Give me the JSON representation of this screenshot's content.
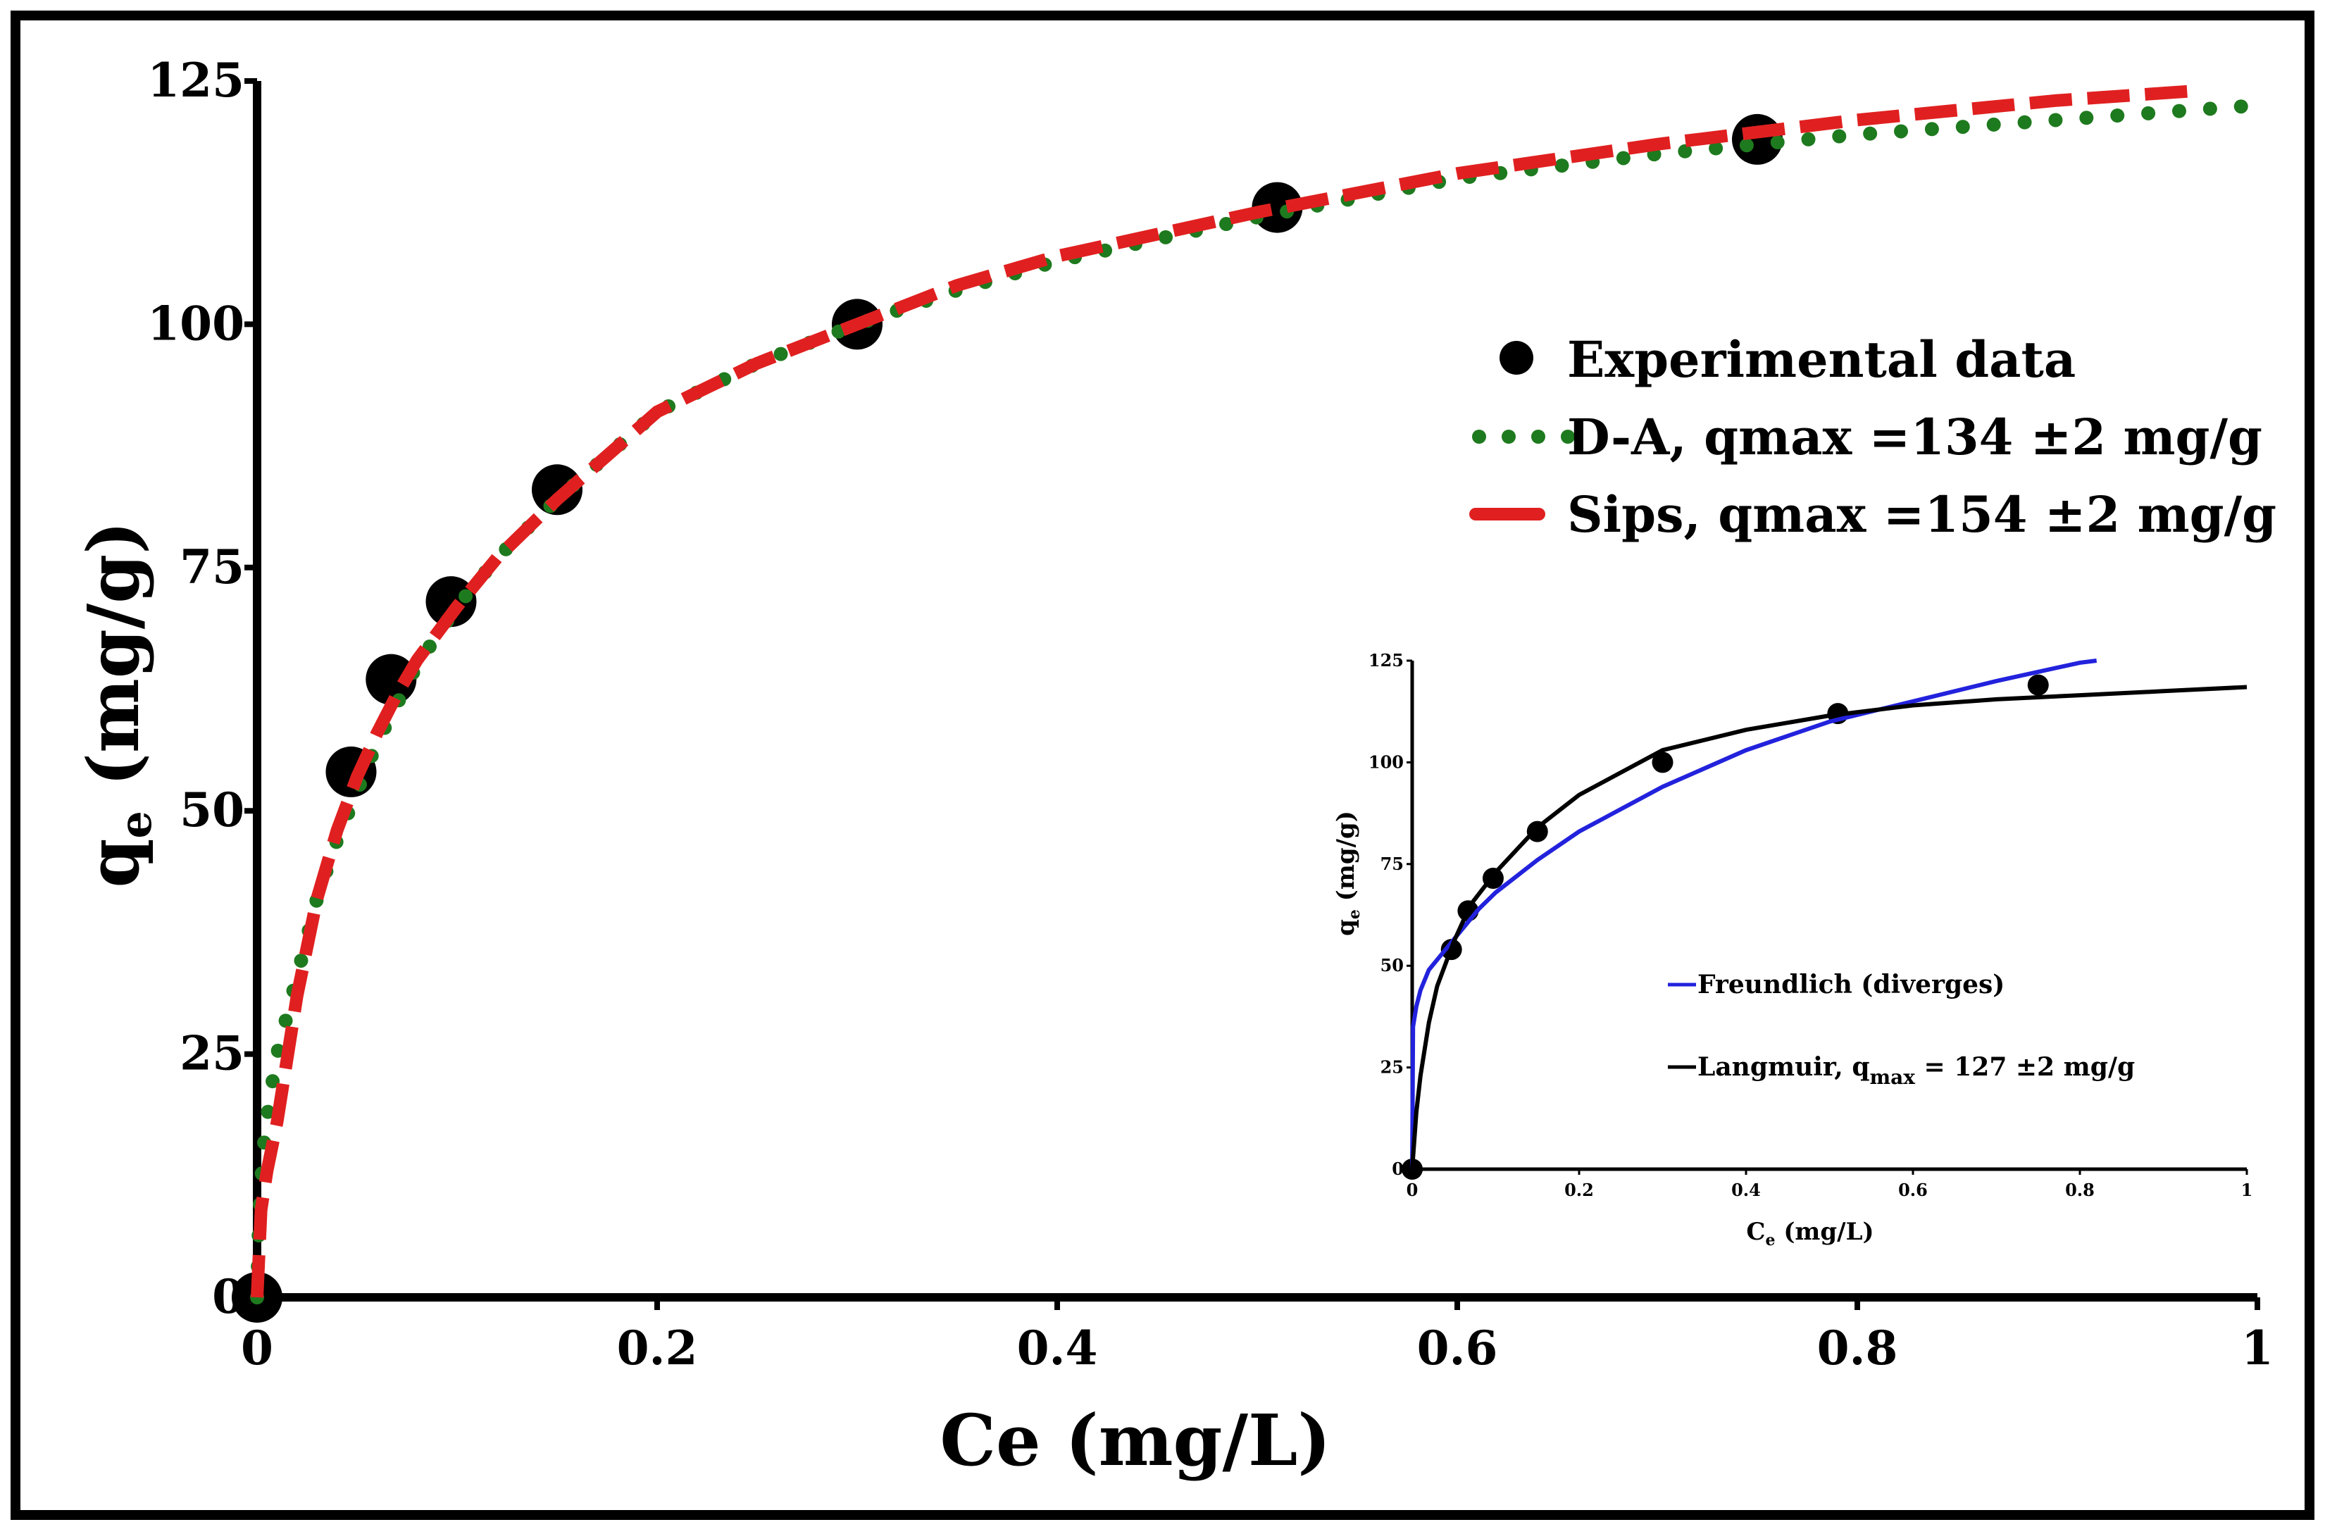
{
  "chart_data": [
    {
      "type": "scatter",
      "title": "",
      "xlabel": "Ce (mg/L)",
      "ylabel_main": "q",
      "ylabel_sub": "e",
      "ylabel_unit": " (mg/g)",
      "xlim": [
        0,
        1
      ],
      "ylim": [
        0,
        125
      ],
      "xticks": [
        0,
        0.2,
        0.4,
        0.6,
        0.8,
        1
      ],
      "xtick_labels": [
        "0",
        "0.2",
        "0.4",
        "0.6",
        "0.8",
        "1"
      ],
      "yticks": [
        0,
        25,
        50,
        75,
        100,
        125
      ],
      "ytick_labels": [
        "0",
        "25",
        "50",
        "75",
        "100",
        "125"
      ],
      "grid": false,
      "legend_position": "upper-right",
      "series": [
        {
          "name": "Experimental data",
          "style": "markers",
          "color": "#000000",
          "x": [
            0,
            0.047,
            0.067,
            0.097,
            0.15,
            0.3,
            0.51,
            0.75
          ],
          "y": [
            0,
            54,
            63.5,
            71.5,
            83,
            100,
            112,
            119
          ]
        },
        {
          "name": "D-A, qmax =134 ±2 mg/g",
          "style": "dotted",
          "color": "#1e7a1e",
          "x": [
            0,
            0.001,
            0.003,
            0.006,
            0.01,
            0.015,
            0.02,
            0.03,
            0.04,
            0.05,
            0.06,
            0.07,
            0.08,
            0.1,
            0.12,
            0.15,
            0.2,
            0.25,
            0.3,
            0.35,
            0.4,
            0.5,
            0.6,
            0.7,
            0.8,
            0.9,
            1.0
          ],
          "y": [
            0,
            8,
            15,
            20,
            25,
            29,
            33,
            41,
            47,
            52,
            57,
            61,
            65,
            71,
            76,
            82,
            91,
            96,
            100,
            103.5,
            106.5,
            111,
            115,
            117.5,
            119.5,
            121,
            122.5
          ]
        },
        {
          "name": "Sips, qmax =154 ±2 mg/g",
          "style": "dashed",
          "color": "#e02020",
          "x": [
            0,
            0.002,
            0.005,
            0.01,
            0.02,
            0.03,
            0.04,
            0.05,
            0.06,
            0.07,
            0.08,
            0.1,
            0.12,
            0.15,
            0.2,
            0.25,
            0.3,
            0.35,
            0.4,
            0.5,
            0.6,
            0.7,
            0.8,
            0.9,
            0.97
          ],
          "y": [
            0,
            9,
            13,
            18,
            31,
            41,
            48,
            53.5,
            58,
            62,
            65.5,
            71,
            76,
            82,
            91,
            96,
            100,
            104,
            107,
            111.5,
            115.5,
            118.5,
            121,
            123,
            124
          ]
        }
      ]
    },
    {
      "type": "scatter",
      "title": "",
      "xlabel_main": "C",
      "xlabel_sub": "e",
      "xlabel_unit": " (mg/L)",
      "ylabel_main": "q",
      "ylabel_sub": "e",
      "ylabel_unit": " (mg/g)",
      "xlim": [
        0,
        1
      ],
      "ylim": [
        0,
        125
      ],
      "xticks": [
        0,
        0.2,
        0.4,
        0.6,
        0.8,
        1
      ],
      "xtick_labels": [
        "0",
        "0.2",
        "0.4",
        "0.6",
        "0.8",
        "1"
      ],
      "yticks": [
        0,
        25,
        50,
        75,
        100,
        125
      ],
      "ytick_labels": [
        "0",
        "25",
        "50",
        "75",
        "100",
        "125"
      ],
      "grid": false,
      "legend_position": "lower-right",
      "series": [
        {
          "name": "",
          "style": "markers",
          "color": "#000000",
          "x": [
            0,
            0.047,
            0.067,
            0.097,
            0.15,
            0.3,
            0.51,
            0.75
          ],
          "y": [
            0,
            54,
            63.5,
            71.5,
            83,
            100,
            112,
            119
          ]
        },
        {
          "name": "Freundlich (diverges)",
          "style": "solid",
          "color": "#2222dd",
          "x": [
            0,
            0.001,
            0.005,
            0.01,
            0.02,
            0.04,
            0.06,
            0.08,
            0.1,
            0.15,
            0.2,
            0.3,
            0.4,
            0.5,
            0.6,
            0.7,
            0.8,
            0.82
          ],
          "y": [
            0,
            35,
            40,
            44,
            49,
            54,
            59,
            64,
            68,
            76,
            83,
            94,
            103,
            110,
            115,
            120,
            124.5,
            125
          ]
        },
        {
          "name": "Langmuir, q",
          "name_sub": "max",
          "name_tail": " = 127 ±2 mg/g",
          "style": "solid",
          "color": "#000000",
          "x": [
            0,
            0.005,
            0.01,
            0.02,
            0.03,
            0.05,
            0.07,
            0.1,
            0.15,
            0.2,
            0.3,
            0.4,
            0.5,
            0.6,
            0.7,
            0.8,
            0.9,
            1.0
          ],
          "y": [
            0,
            14,
            23,
            36,
            45,
            56,
            65,
            73,
            84,
            92,
            103,
            108,
            111.5,
            114,
            115.5,
            116.5,
            117.5,
            118.5
          ]
        }
      ]
    }
  ]
}
